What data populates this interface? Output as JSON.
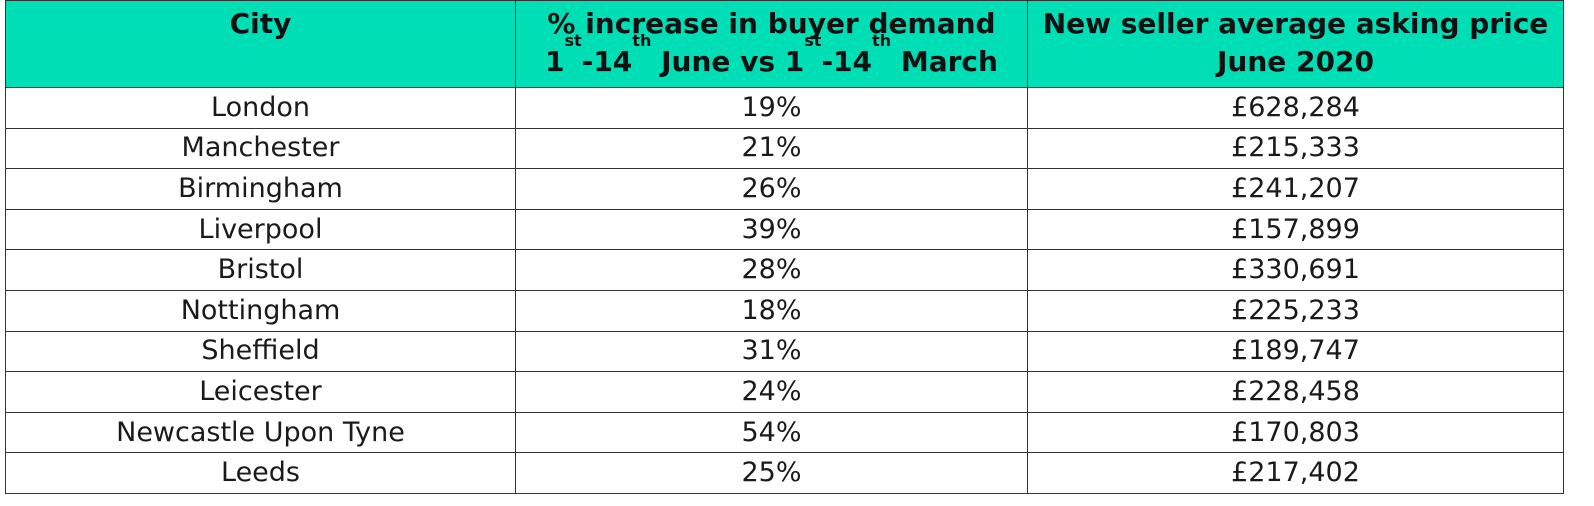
{
  "colors": {
    "header_bg": "#00deb6",
    "border": "#333333",
    "text": "#1a1a1a"
  },
  "header": {
    "col1": "City",
    "col2": {
      "line1": "% increase in buyer demand",
      "line2": {
        "d1": "1",
        "s1": "st",
        "mid1": "-14",
        "s2": "th",
        "mid2": " June vs 1",
        "s3": "st",
        "mid3": "-14",
        "s4": "th",
        "end": " March"
      }
    },
    "col3": {
      "line1": "New seller average asking price",
      "line2": "June 2020"
    }
  },
  "rows": [
    {
      "city": "London",
      "increase": "19%",
      "price": "£628,284"
    },
    {
      "city": "Manchester",
      "increase": "21%",
      "price": "£215,333"
    },
    {
      "city": "Birmingham",
      "increase": "26%",
      "price": "£241,207"
    },
    {
      "city": "Liverpool",
      "increase": "39%",
      "price": "£157,899"
    },
    {
      "city": "Bristol",
      "increase": "28%",
      "price": "£330,691"
    },
    {
      "city": "Nottingham",
      "increase": "18%",
      "price": "£225,233"
    },
    {
      "city": "Sheffield",
      "increase": "31%",
      "price": "£189,747"
    },
    {
      "city": "Leicester",
      "increase": "24%",
      "price": "£228,458"
    },
    {
      "city": "Newcastle Upon Tyne",
      "increase": "54%",
      "price": "£170,803"
    },
    {
      "city": "Leeds",
      "increase": "25%",
      "price": "£217,402"
    }
  ]
}
